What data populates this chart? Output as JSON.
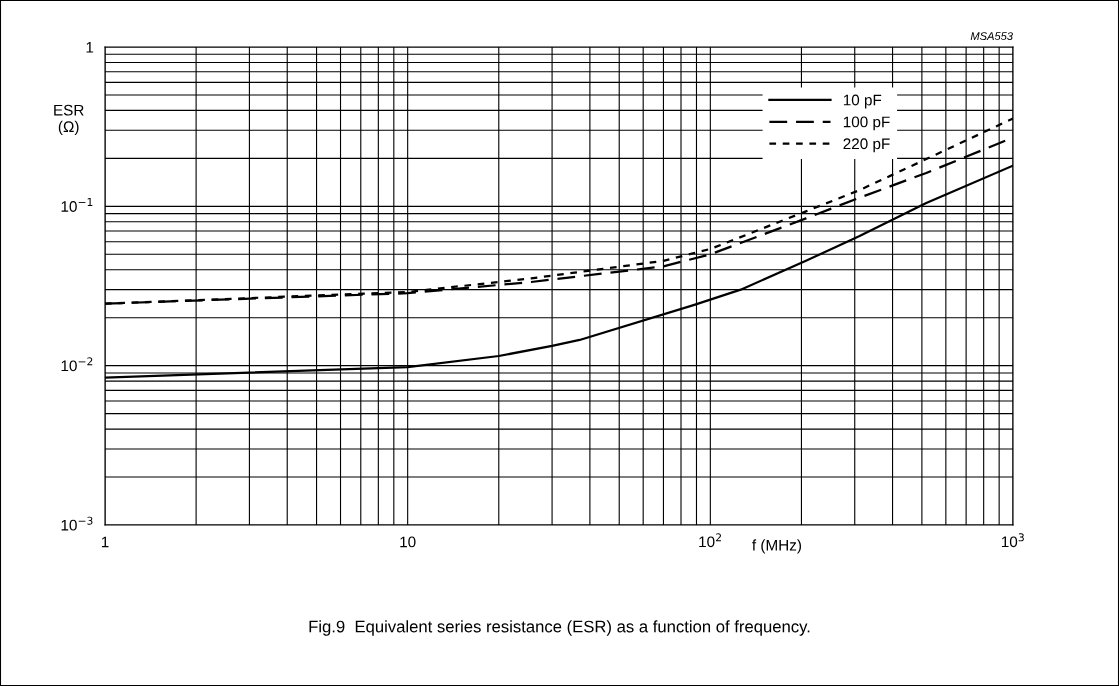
{
  "chart_data": {
    "type": "line",
    "xlabel": "f (MHz)",
    "ylabel": "ESR\n(Ω)",
    "log": "xy",
    "grid": true,
    "legend": "top right",
    "xlim": [
      1,
      1000
    ],
    "ylim": [
      0.001,
      1
    ],
    "xticks": [
      1,
      10,
      {
        "value": 100,
        "label": "10$^{2}$"
      },
      {
        "value": 1000,
        "label": "10$^{3}$"
      }
    ],
    "yticks": [
      {
        "value": 0.001,
        "label": "10$^{−3}$"
      },
      {
        "value": 0.01,
        "label": "10$^{−2}$"
      },
      {
        "value": 0.1,
        "label": "10$^{−1}$"
      },
      1
    ],
    "annotations": [
      "MSA553",
      "Fig.9  Equivalent series resistance (ESR) as a function of frequency."
    ],
    "series": [
      {
        "name": "10 pF",
        "color": "#000000",
        "line_style": "solid",
        "x": [
          1,
          10,
          20,
          30,
          37,
          88,
          126,
          207,
          310,
          517,
          1000
        ],
        "values": [
          0.0084,
          0.0098,
          0.0115,
          0.0133,
          0.0145,
          0.024,
          0.03,
          0.0455,
          0.065,
          0.105,
          0.18
        ]
      },
      {
        "name": "100 pF",
        "color": "#000000",
        "line_style": "dashed",
        "x": [
          1,
          10,
          25.6,
          70,
          100,
          207,
          310,
          517,
          1000
        ],
        "values": [
          0.0245,
          0.0285,
          0.0335,
          0.042,
          0.05,
          0.084,
          0.113,
          0.162,
          0.27
        ]
      },
      {
        "name": "220 pF",
        "color": "#000000",
        "line_style": "dotted",
        "x": [
          1,
          10,
          25.6,
          70,
          100,
          207,
          310,
          517,
          1000
        ],
        "values": [
          0.0245,
          0.029,
          0.0353,
          0.0455,
          0.054,
          0.093,
          0.126,
          0.198,
          0.356
        ]
      }
    ]
  }
}
